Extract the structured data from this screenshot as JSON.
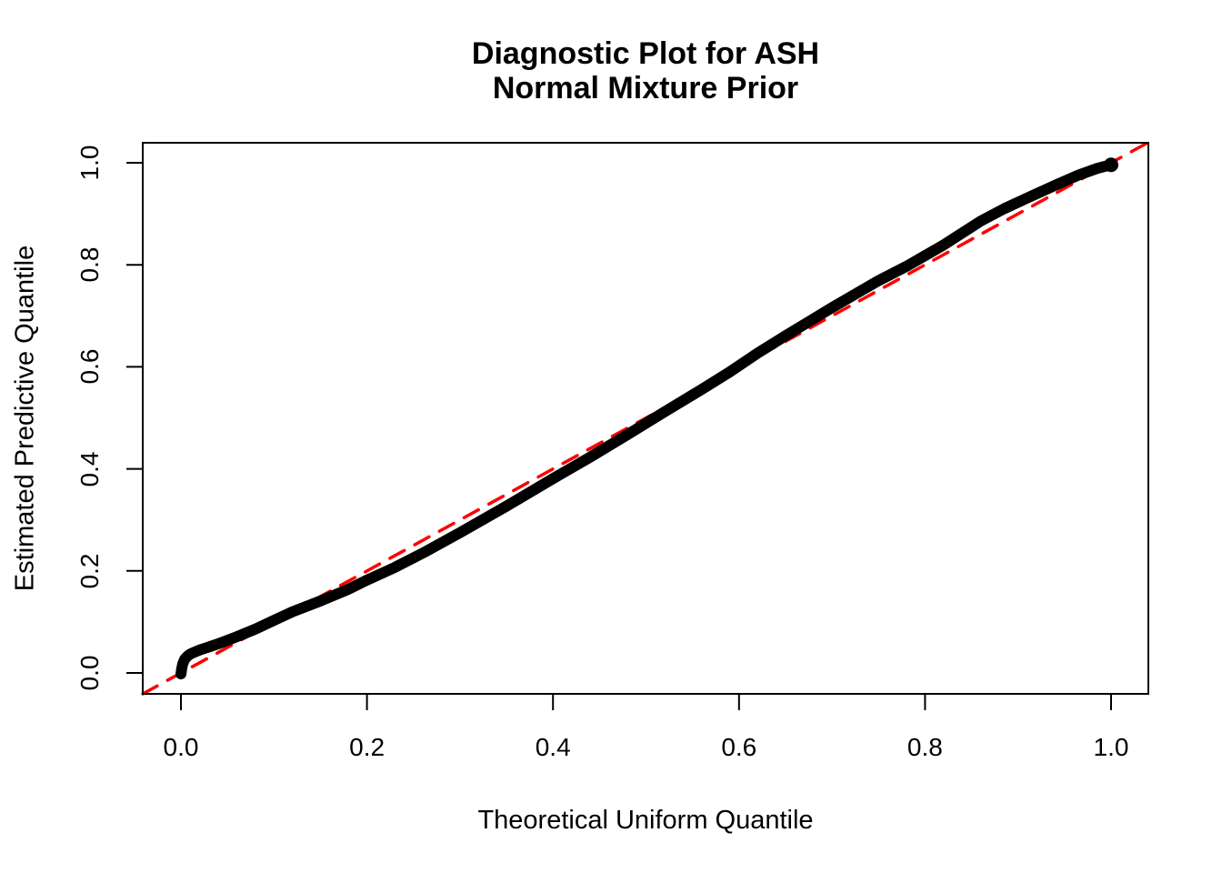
{
  "title": {
    "line1": "Diagnostic Plot for ASH",
    "line2": "Normal Mixture Prior"
  },
  "colors": {
    "curve": "#000000",
    "reference_line": "#FF0000",
    "axis": "#000000",
    "background": "#FFFFFF"
  },
  "chart_data": {
    "type": "line",
    "title": "Diagnostic Plot for ASH\nNormal Mixture Prior",
    "xlabel": "Theoretical Uniform Quantile",
    "ylabel": "Estimated Predictive Quantile",
    "xlim": [
      -0.041,
      1.04
    ],
    "ylim": [
      -0.041,
      1.04
    ],
    "grid": false,
    "legend": "none",
    "x_ticks": [
      0.0,
      0.2,
      0.4,
      0.6,
      0.8,
      1.0
    ],
    "y_ticks": [
      0.0,
      0.2,
      0.4,
      0.6,
      0.8,
      1.0
    ],
    "x_tick_labels": [
      "0.0",
      "0.2",
      "0.4",
      "0.6",
      "0.8",
      "1.0"
    ],
    "y_tick_labels": [
      "0.0",
      "0.2",
      "0.4",
      "0.6",
      "0.8",
      "1.0"
    ],
    "series": [
      {
        "name": "estimated-predictive-quantile-curve",
        "style": "solid",
        "color": "#000000",
        "linewidth": 12,
        "end_dot_radius": 8,
        "points": [
          [
            0.0,
            -0.002
          ],
          [
            0.001,
            0.01
          ],
          [
            0.002,
            0.018
          ],
          [
            0.004,
            0.027
          ],
          [
            0.007,
            0.033
          ],
          [
            0.01,
            0.037
          ],
          [
            0.015,
            0.041
          ],
          [
            0.02,
            0.045
          ],
          [
            0.03,
            0.051
          ],
          [
            0.04,
            0.057
          ],
          [
            0.05,
            0.064
          ],
          [
            0.06,
            0.071
          ],
          [
            0.08,
            0.086
          ],
          [
            0.1,
            0.103
          ],
          [
            0.12,
            0.12
          ],
          [
            0.15,
            0.141
          ],
          [
            0.18,
            0.164
          ],
          [
            0.2,
            0.182
          ],
          [
            0.23,
            0.207
          ],
          [
            0.26,
            0.235
          ],
          [
            0.3,
            0.275
          ],
          [
            0.35,
            0.327
          ],
          [
            0.4,
            0.381
          ],
          [
            0.44,
            0.423
          ],
          [
            0.48,
            0.467
          ],
          [
            0.52,
            0.512
          ],
          [
            0.56,
            0.556
          ],
          [
            0.59,
            0.59
          ],
          [
            0.62,
            0.627
          ],
          [
            0.65,
            0.661
          ],
          [
            0.7,
            0.716
          ],
          [
            0.75,
            0.769
          ],
          [
            0.78,
            0.797
          ],
          [
            0.82,
            0.839
          ],
          [
            0.86,
            0.886
          ],
          [
            0.885,
            0.91
          ],
          [
            0.91,
            0.931
          ],
          [
            0.94,
            0.956
          ],
          [
            0.965,
            0.976
          ],
          [
            0.985,
            0.989
          ],
          [
            1.0,
            0.996
          ]
        ]
      },
      {
        "name": "reference-diagonal-y-equals-x",
        "style": "dashed",
        "color": "#FF0000",
        "linewidth": 3.5,
        "dash": "18 13",
        "points": [
          [
            -0.041,
            -0.041
          ],
          [
            1.04,
            1.04
          ]
        ]
      }
    ]
  }
}
